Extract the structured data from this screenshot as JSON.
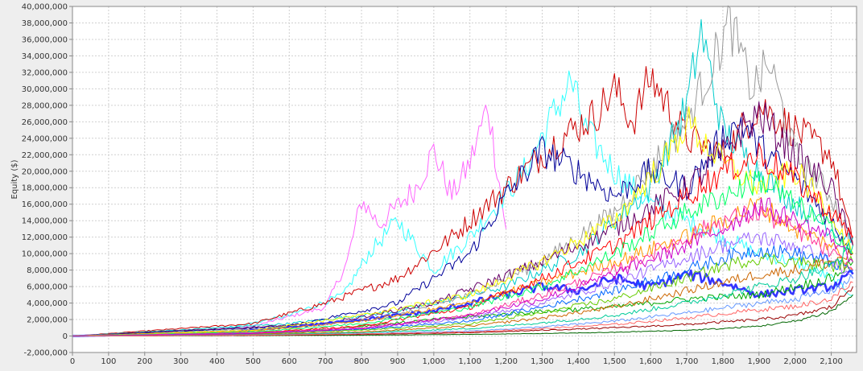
{
  "chart_data": {
    "type": "line",
    "title": "",
    "xlabel": "",
    "ylabel": "Equity ($)",
    "xlim": [
      0,
      2170
    ],
    "ylim": [
      -2000000,
      40000000
    ],
    "grid": true,
    "legend": "none",
    "x_ticks": [
      {
        "value": 0,
        "label": "0"
      },
      {
        "value": 100,
        "label": "100"
      },
      {
        "value": 200,
        "label": "200"
      },
      {
        "value": 300,
        "label": "300"
      },
      {
        "value": 400,
        "label": "400"
      },
      {
        "value": 500,
        "label": "500"
      },
      {
        "value": 600,
        "label": "600"
      },
      {
        "value": 700,
        "label": "700"
      },
      {
        "value": 800,
        "label": "800"
      },
      {
        "value": 900,
        "label": "900"
      },
      {
        "value": 1000,
        "label": "1,000"
      },
      {
        "value": 1100,
        "label": "1,100"
      },
      {
        "value": 1200,
        "label": "1,200"
      },
      {
        "value": 1300,
        "label": "1,300"
      },
      {
        "value": 1400,
        "label": "1,400"
      },
      {
        "value": 1500,
        "label": "1,500"
      },
      {
        "value": 1600,
        "label": "1,600"
      },
      {
        "value": 1700,
        "label": "1,700"
      },
      {
        "value": 1800,
        "label": "1,800"
      },
      {
        "value": 1900,
        "label": "1,900"
      },
      {
        "value": 2000,
        "label": "2,000"
      },
      {
        "value": 2100,
        "label": "2,100"
      }
    ],
    "y_ticks": [
      {
        "value": -2000000,
        "label": "-2,000,000"
      },
      {
        "value": 0,
        "label": "0"
      },
      {
        "value": 2000000,
        "label": "2,000,000"
      },
      {
        "value": 4000000,
        "label": "4,000,000"
      },
      {
        "value": 6000000,
        "label": "6,000,000"
      },
      {
        "value": 8000000,
        "label": "8,000,000"
      },
      {
        "value": 10000000,
        "label": "10,000,000"
      },
      {
        "value": 12000000,
        "label": "12,000,000"
      },
      {
        "value": 14000000,
        "label": "14,000,000"
      },
      {
        "value": 16000000,
        "label": "16,000,000"
      },
      {
        "value": 18000000,
        "label": "18,000,000"
      },
      {
        "value": 20000000,
        "label": "20,000,000"
      },
      {
        "value": 22000000,
        "label": "22,000,000"
      },
      {
        "value": 24000000,
        "label": "24,000,000"
      },
      {
        "value": 26000000,
        "label": "26,000,000"
      },
      {
        "value": 28000000,
        "label": "28,000,000"
      },
      {
        "value": 30000000,
        "label": "30,000,000"
      },
      {
        "value": 32000000,
        "label": "32,000,000"
      },
      {
        "value": 34000000,
        "label": "34,000,000"
      },
      {
        "value": 36000000,
        "label": "36,000,000"
      },
      {
        "value": 38000000,
        "label": "38,000,000"
      },
      {
        "value": 40000000,
        "label": "40,000,000"
      }
    ],
    "series": [
      {
        "color": "#ff66ff",
        "x": [
          0,
          300,
          500,
          700,
          760,
          800,
          850,
          950,
          1000,
          1050,
          1100,
          1150,
          1200
        ],
        "y": [
          0,
          500000,
          1200000,
          3500000,
          9000000,
          16500000,
          13500000,
          18000000,
          22500000,
          17000000,
          21000000,
          28000000,
          13000000
        ]
      },
      {
        "color": "#33ffff",
        "x": [
          0,
          400,
          600,
          750,
          820,
          900,
          1000,
          1100,
          1250,
          1320,
          1380,
          1420,
          1500,
          1600,
          1700,
          1800,
          1900,
          2000,
          2100,
          2160
        ],
        "y": [
          0,
          700000,
          2500000,
          5000000,
          10000000,
          14000000,
          8000000,
          12000000,
          20000000,
          26000000,
          31000000,
          25000000,
          20000000,
          16000000,
          14000000,
          12000000,
          10000000,
          9000000,
          7000000,
          5000000
        ]
      },
      {
        "color": "#cc0000",
        "x": [
          0,
          500,
          700,
          900,
          1050,
          1200,
          1350,
          1450,
          1500,
          1550,
          1600,
          1700,
          1800,
          1900,
          2000,
          2100,
          2160
        ],
        "y": [
          0,
          1500000,
          4000000,
          7000000,
          12000000,
          18000000,
          24000000,
          27000000,
          30000000,
          26000000,
          31500000,
          24000000,
          22000000,
          28000000,
          25000000,
          22000000,
          11000000
        ]
      },
      {
        "color": "#00cccc",
        "x": [
          0,
          600,
          900,
          1200,
          1400,
          1600,
          1700,
          1740,
          1760,
          1800,
          1900,
          2000,
          2100,
          2160
        ],
        "y": [
          0,
          1500000,
          3000000,
          6000000,
          10000000,
          18000000,
          28000000,
          37000000,
          33000000,
          25000000,
          20000000,
          16000000,
          13000000,
          12000000
        ]
      },
      {
        "color": "#999999",
        "x": [
          0,
          600,
          900,
          1100,
          1300,
          1500,
          1700,
          1780,
          1820,
          1880,
          1930,
          2000,
          2100,
          2160
        ],
        "y": [
          0,
          1000000,
          2500000,
          5000000,
          9000000,
          15000000,
          26000000,
          34000000,
          38000000,
          30000000,
          33000000,
          22000000,
          17000000,
          11000000
        ]
      },
      {
        "color": "#000099",
        "x": [
          0,
          600,
          900,
          1100,
          1200,
          1300,
          1400,
          1500,
          1600,
          1700,
          1800,
          1850,
          1900,
          2000,
          2100,
          2160
        ],
        "y": [
          0,
          1200000,
          4000000,
          10000000,
          17000000,
          22500000,
          20000000,
          17000000,
          20000000,
          18000000,
          24000000,
          26000000,
          23000000,
          19000000,
          14000000,
          10000000
        ]
      },
      {
        "color": "#660066",
        "x": [
          0,
          700,
          1000,
          1300,
          1500,
          1700,
          1800,
          1850,
          1900,
          2000,
          2100,
          2160
        ],
        "y": [
          0,
          1500000,
          4000000,
          9000000,
          13000000,
          18000000,
          22000000,
          25000000,
          27000000,
          22000000,
          18000000,
          11000000
        ]
      },
      {
        "color": "#3333ff",
        "x": [
          0,
          400,
          700,
          1000,
          1200,
          1300,
          1400,
          1500,
          1600,
          1700,
          1800,
          1900,
          2000,
          2100,
          2160
        ],
        "y": [
          0,
          300000,
          1500000,
          3000000,
          5000000,
          6000000,
          5500000,
          7000000,
          6000000,
          7500000,
          6500000,
          5000000,
          5500000,
          6000000,
          7500000
        ]
      },
      {
        "color": "#00aa00",
        "x": [
          0,
          400,
          700,
          1000,
          1300,
          1500,
          1700,
          1900,
          2000,
          2100,
          2160
        ],
        "y": [
          0,
          200000,
          800000,
          2000000,
          3000000,
          3500000,
          4500000,
          5000000,
          6000000,
          7000000,
          9000000
        ]
      },
      {
        "color": "#ffff00",
        "x": [
          0,
          500,
          800,
          1100,
          1300,
          1500,
          1650,
          1700,
          1800,
          1900,
          2000,
          2100,
          2160
        ],
        "y": [
          0,
          700000,
          2500000,
          5000000,
          9000000,
          14000000,
          22000000,
          26000000,
          21000000,
          18000000,
          20000000,
          15000000,
          10000000
        ]
      },
      {
        "color": "#ff9900",
        "x": [
          0,
          500,
          800,
          1100,
          1300,
          1500,
          1700,
          1800,
          1900,
          2000,
          2100,
          2160
        ],
        "y": [
          0,
          600000,
          1800000,
          4000000,
          6500000,
          9000000,
          12000000,
          14000000,
          16000000,
          13000000,
          11000000,
          8000000
        ]
      },
      {
        "color": "#ff0000",
        "x": [
          0,
          500,
          800,
          1100,
          1300,
          1500,
          1700,
          1800,
          1900,
          2000,
          2100,
          2160
        ],
        "y": [
          0,
          400000,
          1200000,
          3500000,
          7000000,
          11000000,
          17000000,
          20000000,
          22000000,
          19000000,
          15000000,
          12000000
        ]
      },
      {
        "color": "#00ff66",
        "x": [
          0,
          500,
          800,
          1100,
          1300,
          1500,
          1700,
          1800,
          1900,
          2000,
          2100,
          2160
        ],
        "y": [
          0,
          500000,
          1500000,
          3500000,
          6000000,
          10000000,
          15000000,
          17000000,
          19000000,
          16000000,
          13000000,
          10000000
        ]
      },
      {
        "color": "#ff3399",
        "x": [
          0,
          500,
          800,
          1100,
          1300,
          1500,
          1700,
          1800,
          1900,
          2000,
          2100,
          2160
        ],
        "y": [
          0,
          400000,
          1000000,
          2500000,
          5000000,
          8000000,
          12000000,
          14000000,
          15000000,
          13000000,
          10000000,
          8000000
        ]
      },
      {
        "color": "#9966ff",
        "x": [
          0,
          500,
          800,
          1100,
          1300,
          1500,
          1700,
          1800,
          1900,
          2000,
          2100,
          2160
        ],
        "y": [
          0,
          300000,
          900000,
          2200000,
          4000000,
          6500000,
          9500000,
          11000000,
          12000000,
          11000000,
          9000000,
          7000000
        ]
      },
      {
        "color": "#0066ff",
        "x": [
          0,
          500,
          800,
          1100,
          1300,
          1500,
          1700,
          1800,
          1900,
          2000,
          2100,
          2160
        ],
        "y": [
          0,
          300000,
          800000,
          1800000,
          3500000,
          5500000,
          8000000,
          9500000,
          10500000,
          10000000,
          9000000,
          8000000
        ]
      },
      {
        "color": "#66cc00",
        "x": [
          0,
          500,
          800,
          1100,
          1300,
          1500,
          1700,
          1800,
          1900,
          2000,
          2100,
          2160
        ],
        "y": [
          0,
          250000,
          700000,
          1500000,
          2800000,
          4500000,
          7000000,
          8500000,
          9500000,
          9000000,
          8500000,
          9000000
        ]
      },
      {
        "color": "#cc6600",
        "x": [
          0,
          500,
          800,
          1100,
          1300,
          1500,
          1700,
          1800,
          1900,
          2000,
          2100,
          2160
        ],
        "y": [
          0,
          200000,
          500000,
          1200000,
          2200000,
          3500000,
          5500000,
          6500000,
          7500000,
          8000000,
          9000000,
          10000000
        ]
      },
      {
        "color": "#00cc99",
        "x": [
          0,
          500,
          800,
          1100,
          1300,
          1500,
          1700,
          1800,
          1900,
          2000,
          2100,
          2160
        ],
        "y": [
          0,
          150000,
          400000,
          900000,
          1600000,
          2500000,
          4000000,
          5000000,
          6000000,
          7000000,
          8500000,
          11000000
        ]
      },
      {
        "color": "#cc00cc",
        "x": [
          0,
          500,
          800,
          1100,
          1300,
          1500,
          1700,
          1800,
          1900,
          2000,
          2100,
          2160
        ],
        "y": [
          0,
          300000,
          900000,
          2500000,
          4500000,
          7500000,
          11000000,
          13000000,
          16000000,
          14000000,
          12000000,
          9000000
        ]
      },
      {
        "color": "#006600",
        "x": [
          0,
          500,
          800,
          1100,
          1300,
          1500,
          1700,
          1800,
          1900,
          2000,
          2100,
          2160
        ],
        "y": [
          0,
          50000,
          100000,
          200000,
          300000,
          450000,
          700000,
          900000,
          1200000,
          1800000,
          3000000,
          5000000
        ]
      },
      {
        "color": "#990000",
        "x": [
          0,
          500,
          800,
          1100,
          1300,
          1500,
          1700,
          1800,
          1900,
          2000,
          2100,
          2160
        ],
        "y": [
          0,
          80000,
          200000,
          400000,
          700000,
          1000000,
          1400000,
          1700000,
          2000000,
          2500000,
          3500000,
          6000000
        ]
      },
      {
        "color": "#6699ff",
        "x": [
          0,
          500,
          800,
          1100,
          1300,
          1500,
          1700,
          1800,
          1900,
          2000,
          2100,
          2160
        ],
        "y": [
          0,
          120000,
          300000,
          600000,
          1100000,
          1800000,
          2800000,
          3400000,
          4000000,
          4500000,
          5500000,
          7000000
        ]
      },
      {
        "color": "#ff6666",
        "x": [
          0,
          500,
          800,
          1100,
          1300,
          1500,
          1700,
          1800,
          1900,
          2000,
          2100,
          2160
        ],
        "y": [
          0,
          100000,
          250000,
          500000,
          900000,
          1400000,
          2200000,
          2700000,
          3200000,
          3600000,
          4500000,
          6500000
        ]
      }
    ]
  }
}
